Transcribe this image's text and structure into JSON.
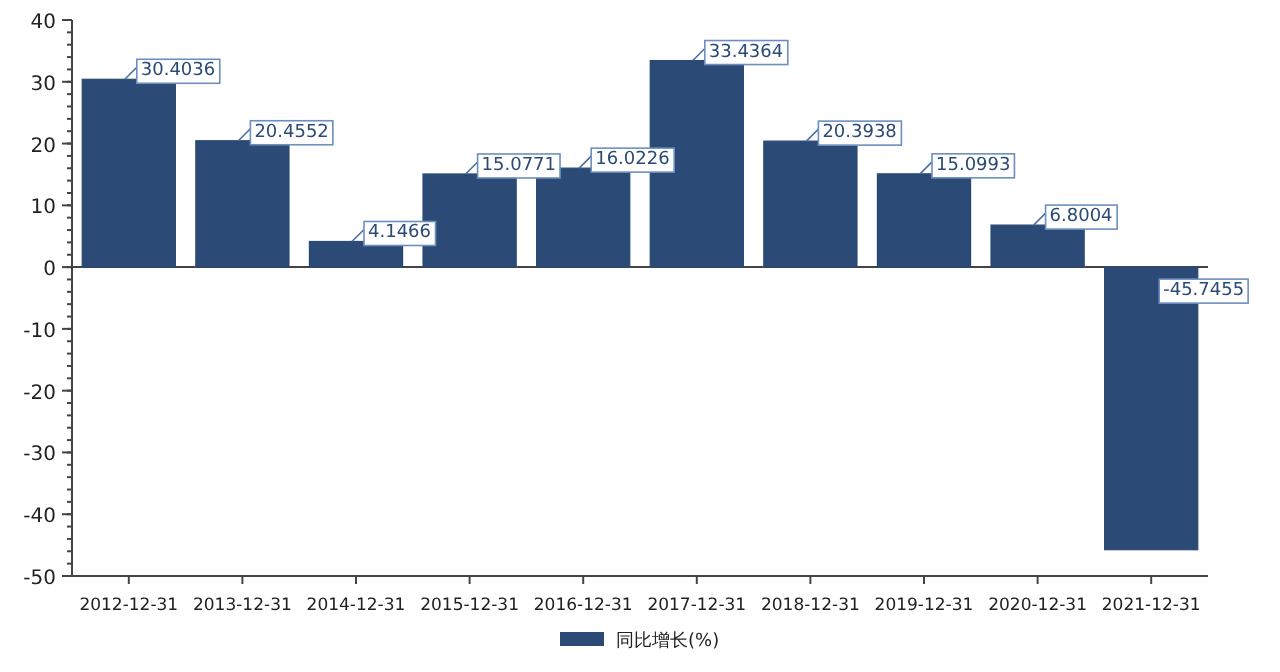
{
  "chart_data": {
    "type": "bar",
    "categories": [
      "2012-12-31",
      "2013-12-31",
      "2014-12-31",
      "2015-12-31",
      "2016-12-31",
      "2017-12-31",
      "2018-12-31",
      "2019-12-31",
      "2020-12-31",
      "2021-12-31"
    ],
    "series": [
      {
        "name": "同比增长(%)",
        "color": "#2b4a75",
        "values": [
          30.4036,
          20.4552,
          4.1466,
          15.0771,
          16.0226,
          33.4364,
          20.3938,
          15.0993,
          6.8004,
          -45.7455
        ]
      }
    ],
    "ylim": [
      -50,
      40
    ],
    "yticks": [
      -50,
      -40,
      -30,
      -20,
      -10,
      0,
      10,
      20,
      30,
      40
    ],
    "data_labels": true,
    "legend": "bottom"
  }
}
